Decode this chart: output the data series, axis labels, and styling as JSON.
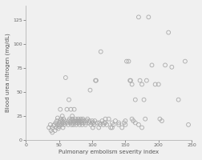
{
  "title": "",
  "xlabel": "Pulmonary embolism severity index",
  "ylabel": "Blood urea nitrogen (mg/dL)",
  "xlim": [
    0,
    250
  ],
  "ylim": [
    0,
    140
  ],
  "xticks": [
    0,
    50,
    100,
    150,
    200,
    250
  ],
  "yticks": [
    0,
    25,
    50,
    75,
    100,
    125
  ],
  "marker": "o",
  "marker_size": 3.5,
  "marker_facecolor": "none",
  "marker_edgecolor": "#aaaaaa",
  "marker_linewidth": 0.6,
  "background_color": "#f0f0f0",
  "points": [
    [
      35,
      13
    ],
    [
      37,
      16
    ],
    [
      38,
      10
    ],
    [
      40,
      8
    ],
    [
      40,
      13
    ],
    [
      42,
      15
    ],
    [
      43,
      16
    ],
    [
      44,
      10
    ],
    [
      45,
      18
    ],
    [
      46,
      13
    ],
    [
      47,
      20
    ],
    [
      48,
      16
    ],
    [
      48,
      23
    ],
    [
      49,
      12
    ],
    [
      50,
      18
    ],
    [
      50,
      14
    ],
    [
      51,
      16
    ],
    [
      52,
      20
    ],
    [
      52,
      32
    ],
    [
      53,
      22
    ],
    [
      54,
      16
    ],
    [
      55,
      18
    ],
    [
      55,
      20
    ],
    [
      55,
      25
    ],
    [
      56,
      13
    ],
    [
      57,
      18
    ],
    [
      57,
      22
    ],
    [
      58,
      16
    ],
    [
      59,
      20
    ],
    [
      60,
      18
    ],
    [
      60,
      65
    ],
    [
      62,
      32
    ],
    [
      63,
      18
    ],
    [
      64,
      16
    ],
    [
      65,
      20
    ],
    [
      65,
      42
    ],
    [
      66,
      22
    ],
    [
      67,
      18
    ],
    [
      68,
      20
    ],
    [
      68,
      32
    ],
    [
      69,
      16
    ],
    [
      70,
      22
    ],
    [
      70,
      25
    ],
    [
      71,
      18
    ],
    [
      72,
      20
    ],
    [
      72,
      16
    ],
    [
      73,
      32
    ],
    [
      74,
      20
    ],
    [
      75,
      22
    ],
    [
      75,
      18
    ],
    [
      76,
      16
    ],
    [
      77,
      20
    ],
    [
      78,
      18
    ],
    [
      79,
      22
    ],
    [
      80,
      18
    ],
    [
      80,
      20
    ],
    [
      81,
      16
    ],
    [
      82,
      20
    ],
    [
      83,
      22
    ],
    [
      84,
      18
    ],
    [
      85,
      20
    ],
    [
      85,
      16
    ],
    [
      86,
      22
    ],
    [
      87,
      18
    ],
    [
      88,
      20
    ],
    [
      90,
      18
    ],
    [
      90,
      16
    ],
    [
      92,
      20
    ],
    [
      93,
      22
    ],
    [
      95,
      18
    ],
    [
      96,
      20
    ],
    [
      97,
      52
    ],
    [
      98,
      16
    ],
    [
      100,
      18
    ],
    [
      100,
      20
    ],
    [
      101,
      13
    ],
    [
      102,
      18
    ],
    [
      103,
      16
    ],
    [
      104,
      20
    ],
    [
      105,
      62
    ],
    [
      106,
      62
    ],
    [
      108,
      18
    ],
    [
      110,
      13
    ],
    [
      111,
      18
    ],
    [
      112,
      16
    ],
    [
      113,
      92
    ],
    [
      115,
      20
    ],
    [
      117,
      16
    ],
    [
      118,
      18
    ],
    [
      120,
      18
    ],
    [
      120,
      22
    ],
    [
      122,
      16
    ],
    [
      125,
      22
    ],
    [
      128,
      13
    ],
    [
      130,
      18
    ],
    [
      130,
      13
    ],
    [
      132,
      16
    ],
    [
      135,
      20
    ],
    [
      140,
      16
    ],
    [
      140,
      18
    ],
    [
      145,
      13
    ],
    [
      148,
      18
    ],
    [
      150,
      16
    ],
    [
      150,
      20
    ],
    [
      152,
      82
    ],
    [
      155,
      82
    ],
    [
      157,
      62
    ],
    [
      158,
      62
    ],
    [
      160,
      58
    ],
    [
      160,
      22
    ],
    [
      162,
      20
    ],
    [
      165,
      18
    ],
    [
      165,
      42
    ],
    [
      170,
      16
    ],
    [
      170,
      128
    ],
    [
      172,
      62
    ],
    [
      175,
      58
    ],
    [
      175,
      13
    ],
    [
      178,
      42
    ],
    [
      180,
      22
    ],
    [
      182,
      62
    ],
    [
      185,
      128
    ],
    [
      190,
      78
    ],
    [
      195,
      58
    ],
    [
      200,
      58
    ],
    [
      202,
      22
    ],
    [
      205,
      20
    ],
    [
      210,
      78
    ],
    [
      215,
      112
    ],
    [
      220,
      76
    ],
    [
      230,
      42
    ],
    [
      240,
      82
    ],
    [
      245,
      16
    ]
  ]
}
